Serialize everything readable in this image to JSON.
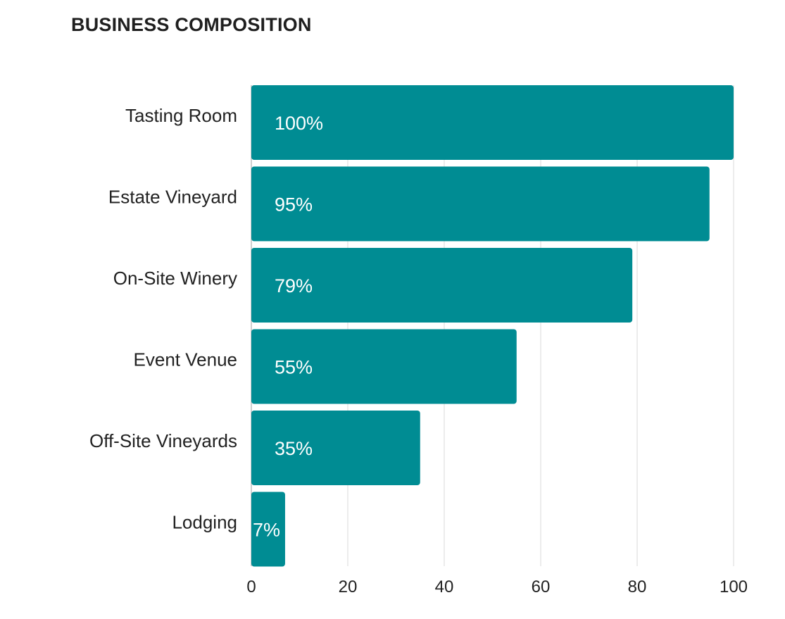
{
  "chart_data": {
    "type": "bar",
    "orientation": "horizontal",
    "title": "BUSINESS COMPOSITION",
    "categories": [
      "Tasting Room",
      "Estate Vineyard",
      "On-Site Winery",
      "Event Venue",
      "Off-Site Vineyards",
      "Lodging"
    ],
    "values": [
      100,
      95,
      79,
      55,
      35,
      7
    ],
    "data_labels": [
      "100%",
      "95%",
      "79%",
      "55%",
      "35%",
      "7%"
    ],
    "xlim": [
      0,
      100
    ],
    "xticks": [
      0,
      20,
      40,
      60,
      80,
      100
    ],
    "xtick_labels": [
      "0",
      "20",
      "40",
      "60",
      "80",
      "100"
    ],
    "grid": "vertical",
    "bar_color": "#008c93",
    "grid_color": "#d9d9d9",
    "legend": "none"
  }
}
